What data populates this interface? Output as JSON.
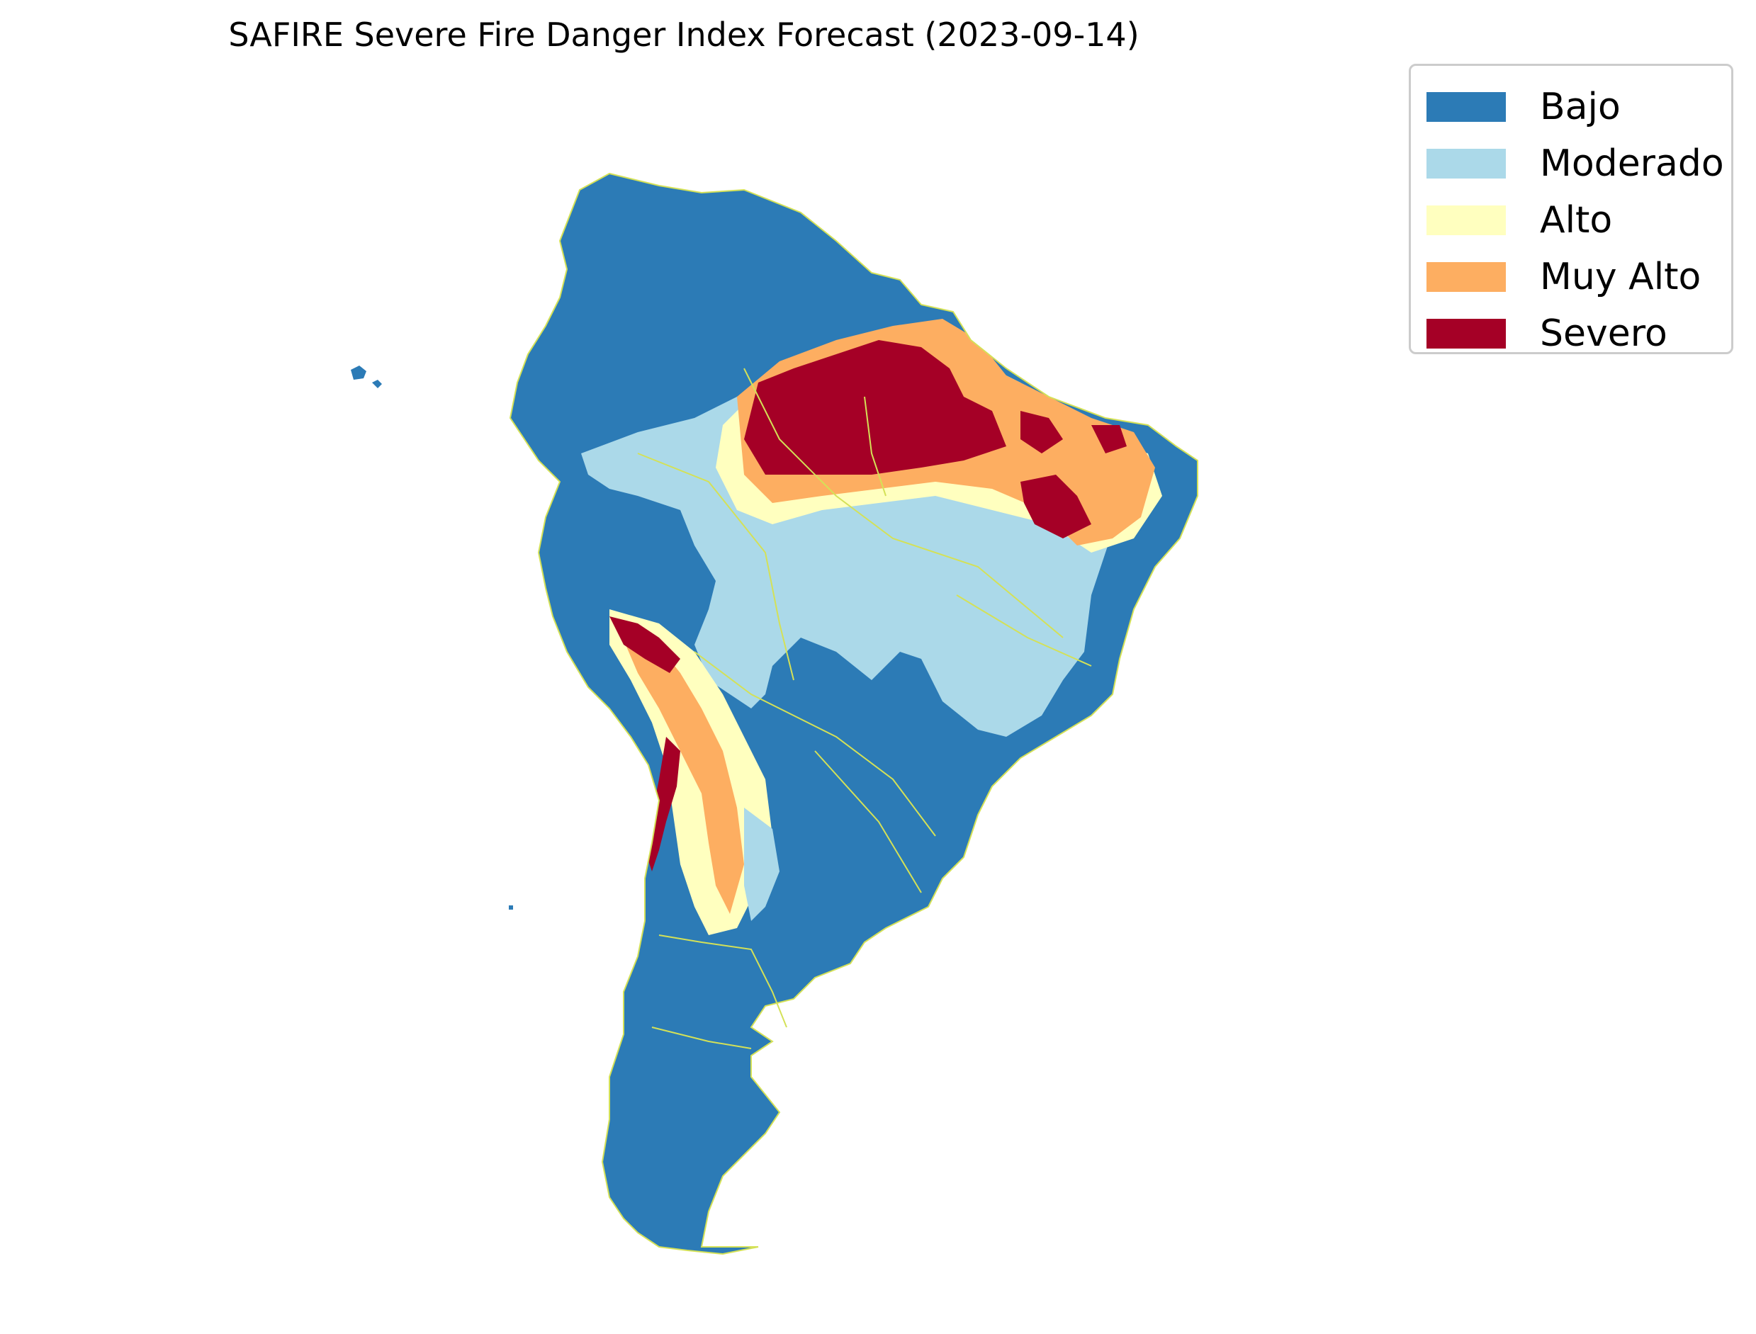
{
  "title": "SAFIRE Severe Fire Danger Index Forecast (2023-09-14)",
  "legend": {
    "placement": "top-right, outside map",
    "items": [
      {
        "label": "Bajo",
        "color": "#2c7bb6"
      },
      {
        "label": "Moderado",
        "color": "#abd9e9"
      },
      {
        "label": "Alto",
        "color": "#ffffbf"
      },
      {
        "label": "Muy Alto",
        "color": "#fdae61"
      },
      {
        "label": "Severo",
        "color": "#a50026"
      }
    ]
  },
  "map": {
    "region": "South America",
    "border_color": "#d4e157",
    "background": "#ffffff"
  }
}
